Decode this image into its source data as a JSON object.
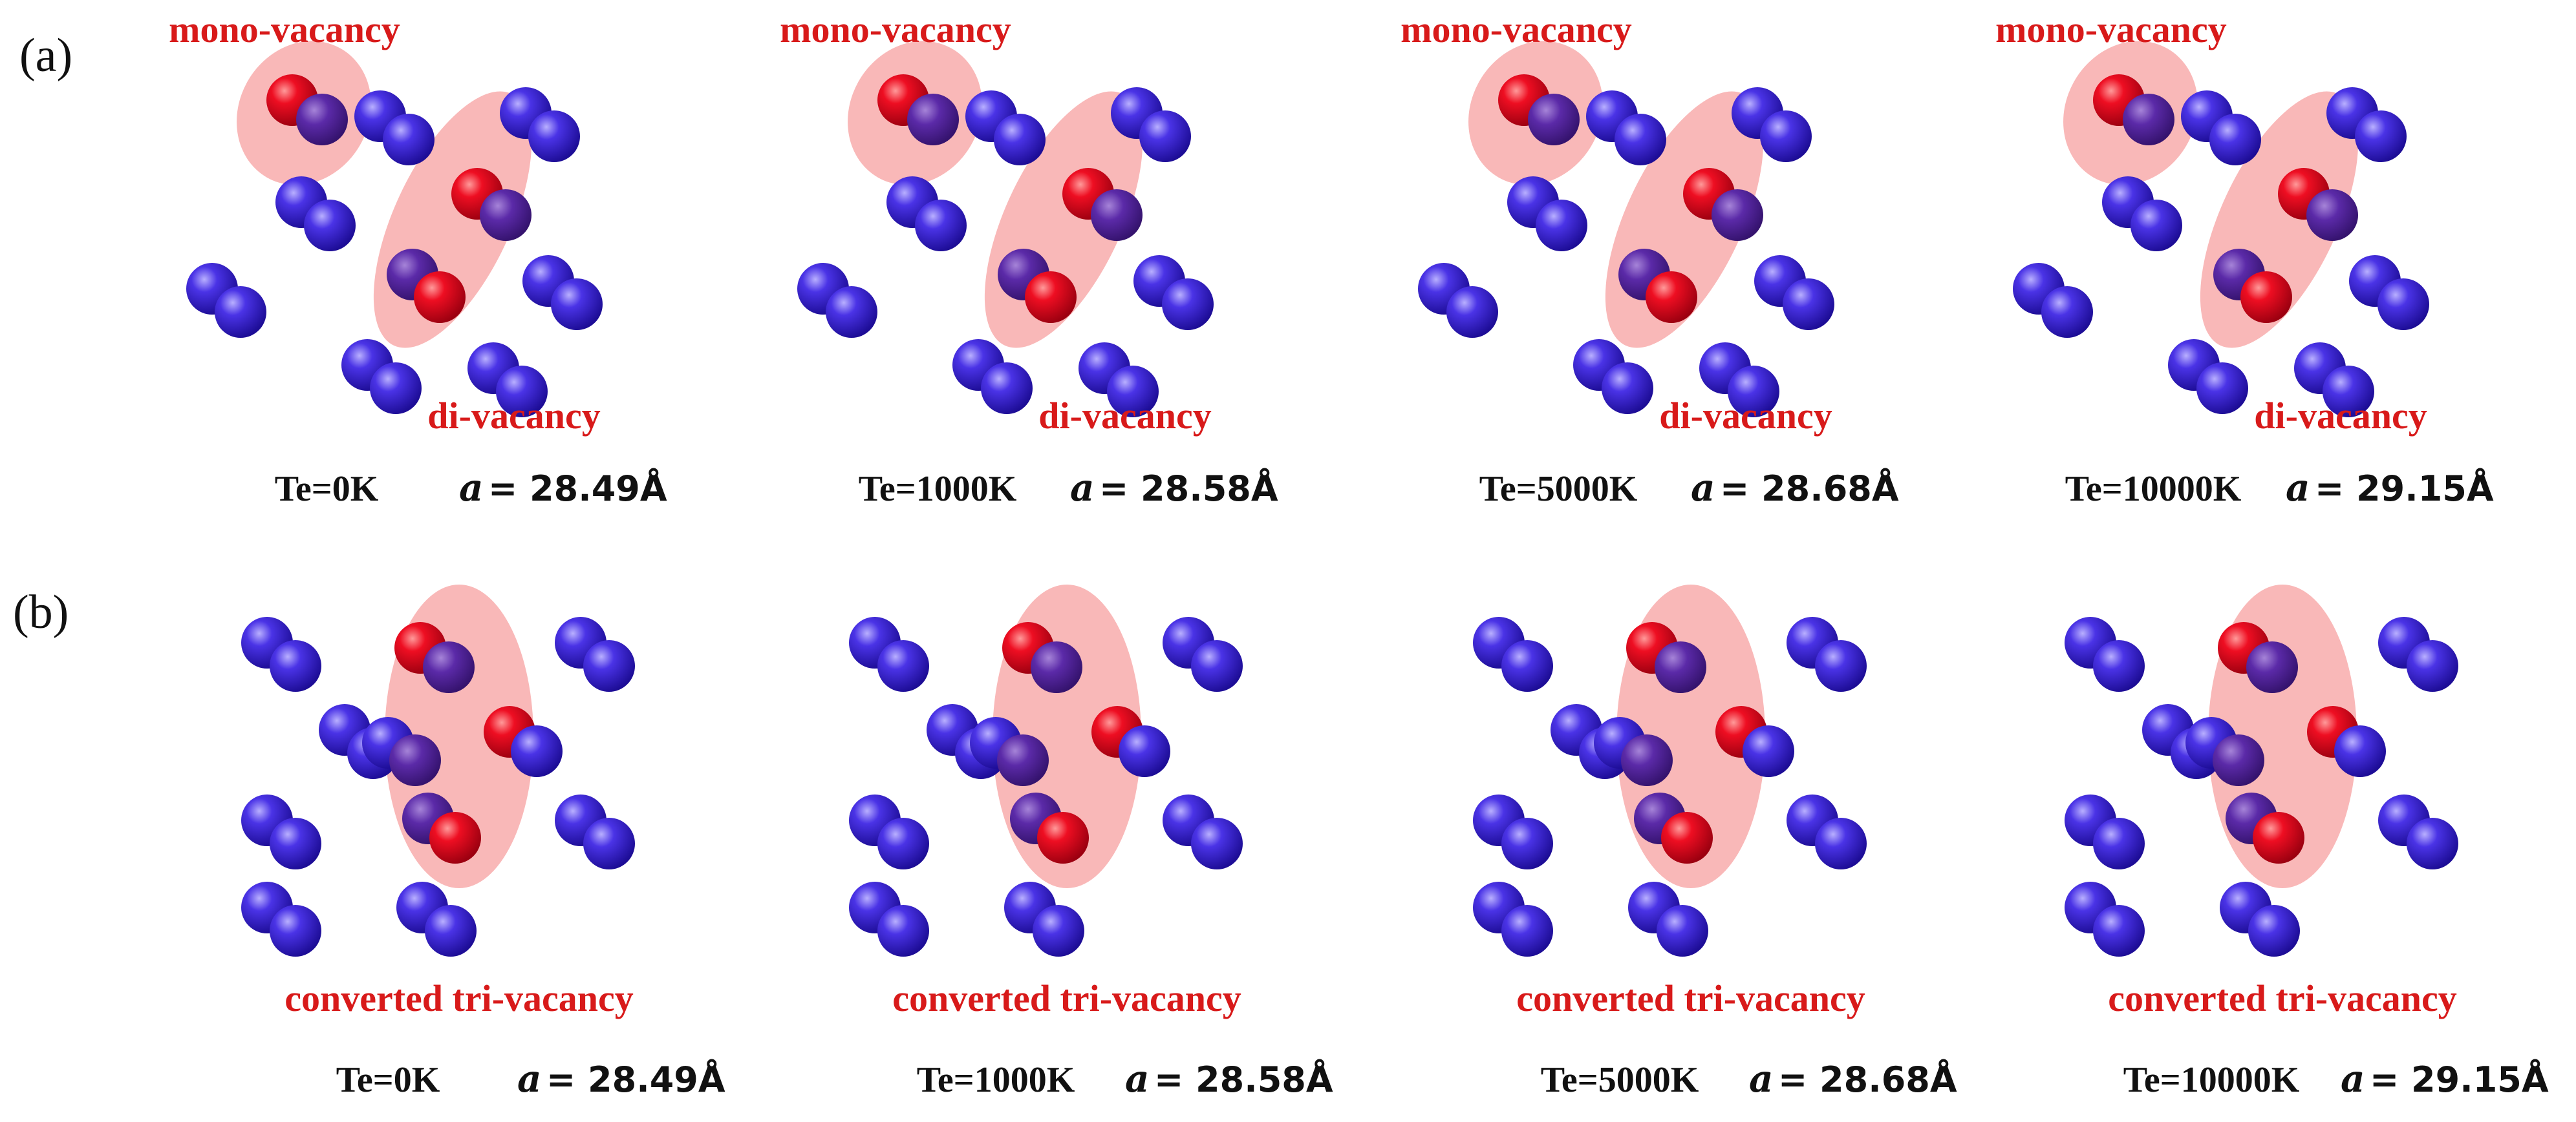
{
  "panels": [
    {
      "letter": "(a)",
      "mono_label": "mono-vacancy",
      "di_label": "di-vacancy",
      "cells": [
        {
          "temp": "Te=0K",
          "lattice_symbol": "a",
          "lattice_value": "= 28.49Å"
        },
        {
          "temp": "Te=1000K",
          "lattice_symbol": "a",
          "lattice_value": "= 28.58Å"
        },
        {
          "temp": "Te=5000K",
          "lattice_symbol": "a",
          "lattice_value": "= 28.68Å"
        },
        {
          "temp": "Te=10000K",
          "lattice_symbol": "a",
          "lattice_value": "= 29.15Å"
        }
      ]
    },
    {
      "letter": "(b)",
      "tri_label": "converted tri-vacancy",
      "cells": [
        {
          "temp": "Te=0K",
          "lattice_symbol": "a",
          "lattice_value": "= 28.49Å"
        },
        {
          "temp": "Te=1000K",
          "lattice_symbol": "a",
          "lattice_value": "= 28.58Å"
        },
        {
          "temp": "Te=5000K",
          "lattice_symbol": "a",
          "lattice_value": "= 28.68Å"
        },
        {
          "temp": "Te=10000K",
          "lattice_symbol": "a",
          "lattice_value": "= 29.15Å"
        }
      ]
    }
  ],
  "colors": {
    "atom_blue": "#3a1fd6",
    "atom_red": "#e8001a",
    "highlight": "#f7a0a0",
    "label_red": "#d81a1a",
    "text_black": "#111111"
  }
}
